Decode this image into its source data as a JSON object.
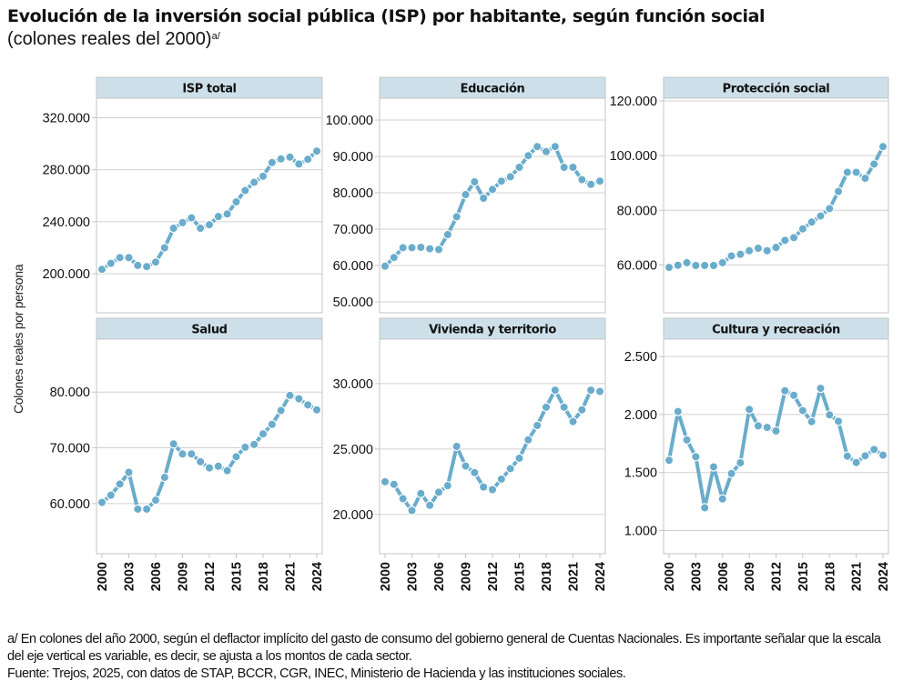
{
  "header": {
    "title": "Evolución de la inversión social pública (ISP) por habitante, según función social",
    "subtitle": "(colones reales del 2000)",
    "subtitle_note": "a/"
  },
  "y_axis_label": "Colones reales por persona",
  "footnotes": {
    "note_line1": "a/ En colones del año 2000, según el deflactor implícito del gasto de consumo del gobierno general de Cuentas Nacionales. Es importante señalar que la escala",
    "note_line2": "del eje vertical es variable, es decir, se ajusta a los montos de cada sector.",
    "source": "Fuente: Trejos, 2025, con datos de STAP, BCCR, CGR, INEC, Ministerio de Hacienda y las instituciones sociales."
  },
  "colors": {
    "line": "#6aaccb",
    "panel_header": "#cde0ea",
    "grid": "#d0d0d0",
    "frame": "#c4c4c4"
  },
  "chart_data": [
    {
      "type": "line",
      "title": "ISP total",
      "x": [
        2000,
        2001,
        2002,
        2003,
        2004,
        2005,
        2006,
        2007,
        2008,
        2009,
        2010,
        2011,
        2012,
        2013,
        2014,
        2015,
        2016,
        2017,
        2018,
        2019,
        2020,
        2021,
        2022,
        2023,
        2024
      ],
      "values": [
        203400,
        208000,
        212400,
        212400,
        206400,
        205500,
        209000,
        220000,
        235000,
        239300,
        243000,
        235000,
        237700,
        244000,
        246000,
        255300,
        264000,
        270300,
        275000,
        285500,
        288300,
        289700,
        284400,
        288000,
        294300
      ],
      "yticks": [
        200000,
        240000,
        280000,
        320000
      ],
      "ytick_labels": [
        "200.000",
        "240.000",
        "280.000",
        "320.000"
      ],
      "ylim": [
        170000,
        335000
      ],
      "xticks": [
        2000,
        2003,
        2006,
        2009,
        2012,
        2015,
        2018,
        2021,
        2024
      ],
      "xtick_labels": [],
      "grid": true
    },
    {
      "type": "line",
      "title": "Educación",
      "x": [
        2000,
        2001,
        2002,
        2003,
        2004,
        2005,
        2006,
        2007,
        2008,
        2009,
        2010,
        2011,
        2012,
        2013,
        2014,
        2015,
        2016,
        2017,
        2018,
        2019,
        2020,
        2021,
        2022,
        2023,
        2024
      ],
      "values": [
        59800,
        62200,
        64900,
        64900,
        65000,
        64600,
        64400,
        68500,
        73400,
        79500,
        83000,
        78500,
        80900,
        83200,
        84400,
        87000,
        90200,
        92700,
        91300,
        92700,
        87000,
        87000,
        83600,
        82300,
        83200
      ],
      "yticks": [
        50000,
        60000,
        70000,
        80000,
        90000,
        100000
      ],
      "ytick_labels": [
        "50.000",
        "60.000",
        "70.000",
        "80.000",
        "90.000",
        "100.000"
      ],
      "ylim": [
        47000,
        106000
      ],
      "xticks": [
        2000,
        2003,
        2006,
        2009,
        2012,
        2015,
        2018,
        2021,
        2024
      ],
      "xtick_labels": [],
      "grid": true
    },
    {
      "type": "line",
      "title": "Protección social",
      "x": [
        2000,
        2001,
        2002,
        2003,
        2004,
        2005,
        2006,
        2007,
        2008,
        2009,
        2010,
        2011,
        2012,
        2013,
        2014,
        2015,
        2016,
        2017,
        2018,
        2019,
        2020,
        2021,
        2022,
        2023,
        2024
      ],
      "values": [
        59100,
        59900,
        60800,
        59800,
        59800,
        59800,
        60800,
        63300,
        63900,
        65200,
        66100,
        65200,
        66400,
        69000,
        70000,
        73200,
        75700,
        77900,
        80600,
        86900,
        93900,
        93900,
        91700,
        96900,
        103300
      ],
      "yticks": [
        60000,
        80000,
        100000,
        120000
      ],
      "ytick_labels": [
        "60.000",
        "80.000",
        "100.000",
        "120.000"
      ],
      "ylim": [
        42500,
        121000
      ],
      "xticks": [
        2000,
        2003,
        2006,
        2009,
        2012,
        2015,
        2018,
        2021,
        2024
      ],
      "xtick_labels": [],
      "grid": true
    },
    {
      "type": "line",
      "title": "Salud",
      "x": [
        2000,
        2001,
        2002,
        2003,
        2004,
        2005,
        2006,
        2007,
        2008,
        2009,
        2010,
        2011,
        2012,
        2013,
        2014,
        2015,
        2016,
        2017,
        2018,
        2019,
        2020,
        2021,
        2022,
        2023,
        2024
      ],
      "values": [
        60200,
        61500,
        63500,
        65600,
        59000,
        59000,
        60600,
        64700,
        70700,
        68900,
        68900,
        67500,
        66400,
        66700,
        65900,
        68400,
        70100,
        70600,
        72500,
        74200,
        76700,
        79400,
        78800,
        77700,
        76800
      ],
      "yticks": [
        60000,
        70000,
        80000
      ],
      "ytick_labels": [
        "60.000",
        "70.000",
        "80.000"
      ],
      "ylim": [
        51000,
        89500
      ],
      "xticks": [
        2000,
        2003,
        2006,
        2009,
        2012,
        2015,
        2018,
        2021,
        2024
      ],
      "xtick_labels": [
        "2000",
        "2003",
        "2006",
        "2009",
        "2012",
        "2015",
        "2018",
        "2021",
        "2024"
      ],
      "grid": true
    },
    {
      "type": "line",
      "title": "Vivienda y territorio",
      "x": [
        2000,
        2001,
        2002,
        2003,
        2004,
        2005,
        2006,
        2007,
        2008,
        2009,
        2010,
        2011,
        2012,
        2013,
        2014,
        2015,
        2016,
        2017,
        2018,
        2019,
        2020,
        2021,
        2022,
        2023,
        2024
      ],
      "values": [
        22500,
        22300,
        21200,
        20300,
        21600,
        20700,
        21700,
        22200,
        25200,
        23700,
        23200,
        22100,
        21900,
        22700,
        23500,
        24300,
        25700,
        26800,
        28200,
        29500,
        28200,
        27100,
        28000,
        29500,
        29400
      ],
      "yticks": [
        20000,
        25000,
        30000
      ],
      "ytick_labels": [
        "20.000",
        "25.000",
        "30.000"
      ],
      "ylim": [
        17000,
        33400
      ],
      "xticks": [
        2000,
        2003,
        2006,
        2009,
        2012,
        2015,
        2018,
        2021,
        2024
      ],
      "xtick_labels": [
        "2000",
        "2003",
        "2006",
        "2009",
        "2012",
        "2015",
        "2018",
        "2021",
        "2024"
      ],
      "grid": true
    },
    {
      "type": "line",
      "title": "Cultura y recreación",
      "x": [
        2000,
        2001,
        2002,
        2003,
        2004,
        2005,
        2006,
        2007,
        2008,
        2009,
        2010,
        2011,
        2012,
        2013,
        2014,
        2015,
        2016,
        2017,
        2018,
        2019,
        2020,
        2021,
        2022,
        2023,
        2024
      ],
      "values": [
        1605,
        2026,
        1781,
        1636,
        1196,
        1549,
        1272,
        1491,
        1584,
        2044,
        1902,
        1889,
        1858,
        2205,
        2166,
        2034,
        1939,
        2226,
        1997,
        1942,
        1641,
        1586,
        1644,
        1699,
        1650
      ],
      "yticks": [
        1000,
        1500,
        2000,
        2500
      ],
      "ytick_labels": [
        "1.000",
        "1.500",
        "2.000",
        "2.500"
      ],
      "ylim": [
        800,
        2650
      ],
      "xticks": [
        2000,
        2003,
        2006,
        2009,
        2012,
        2015,
        2018,
        2021,
        2024
      ],
      "xtick_labels": [
        "2000",
        "2003",
        "2006",
        "2009",
        "2012",
        "2015",
        "2018",
        "2021",
        "2024"
      ],
      "grid": true
    }
  ]
}
